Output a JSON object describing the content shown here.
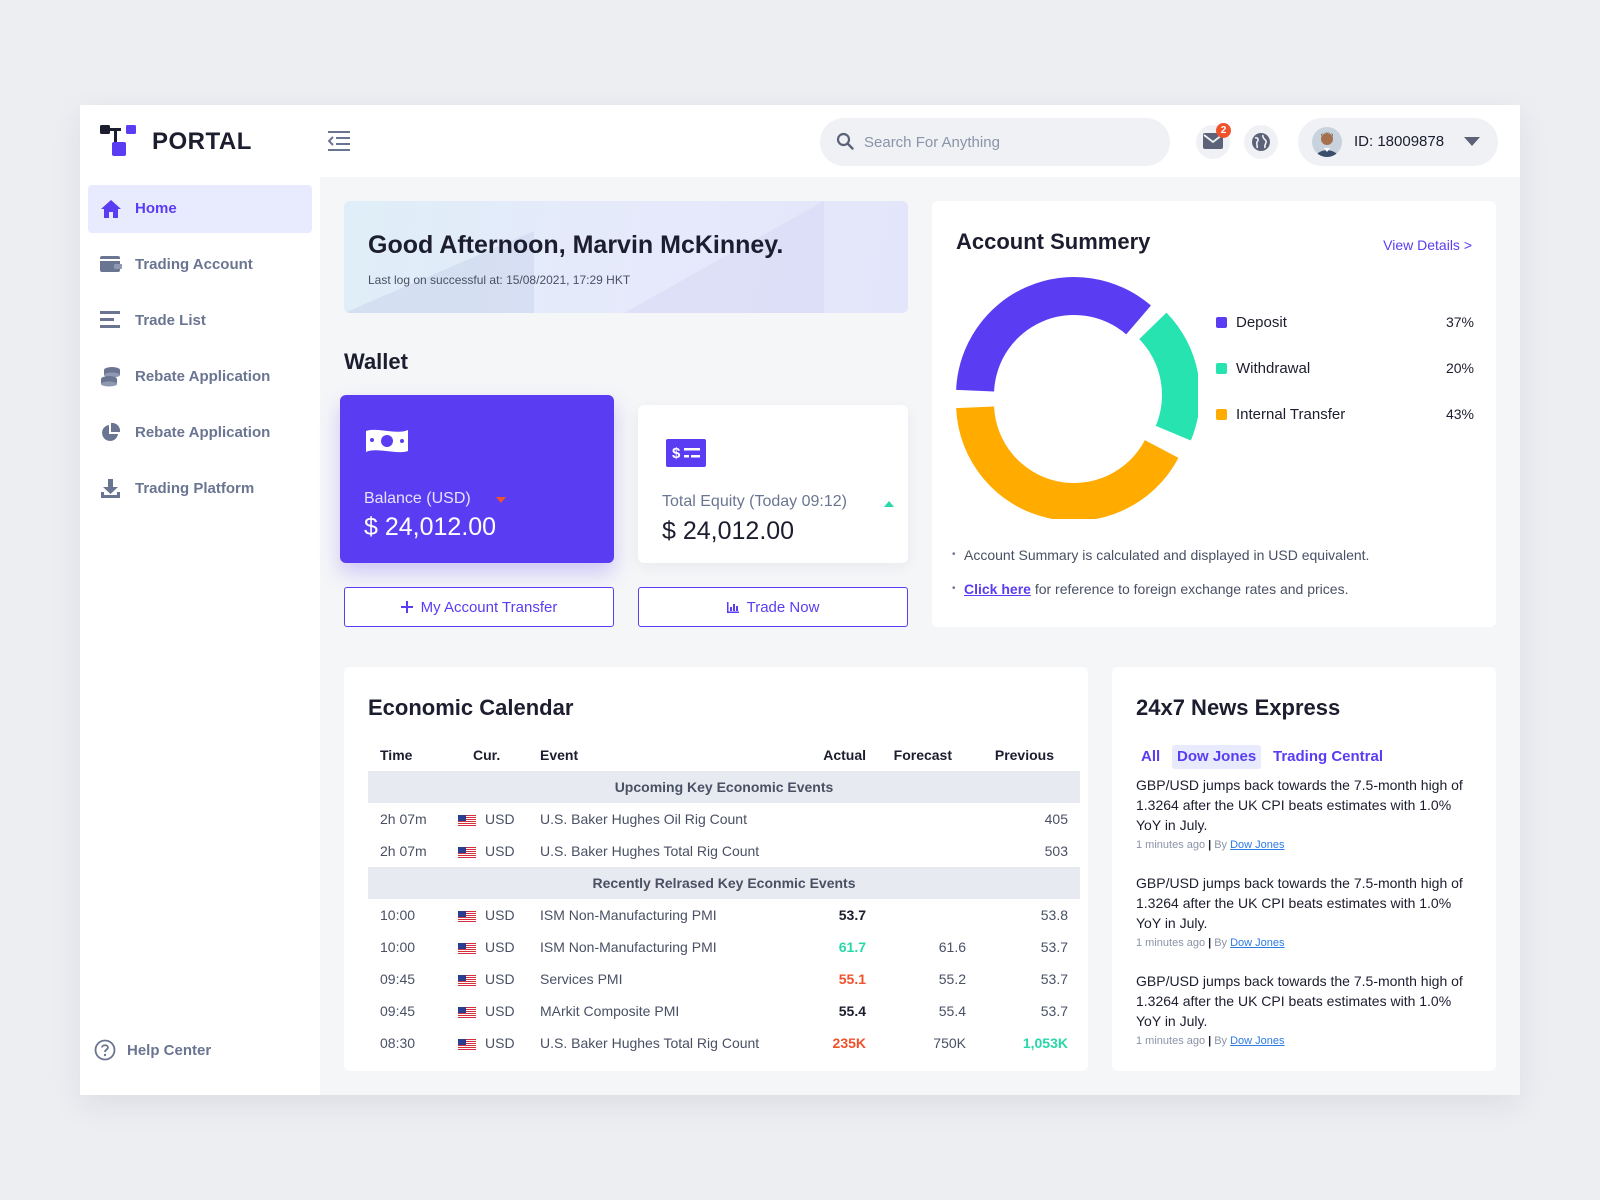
{
  "brand": {
    "name": "PORTAL",
    "accent": "#5a3df2"
  },
  "header": {
    "search_placeholder": "Search For Anything",
    "mail_badge": "2",
    "user_id": "ID: 18009878"
  },
  "sidebar": {
    "items": [
      {
        "label": "Home",
        "icon": "home-icon",
        "active": true
      },
      {
        "label": "Trading Account",
        "icon": "wallet-icon"
      },
      {
        "label": "Trade List",
        "icon": "list-icon"
      },
      {
        "label": "Rebate Application",
        "icon": "coins-icon"
      },
      {
        "label": "Rebate Application",
        "icon": "pie-chart-icon"
      },
      {
        "label": "Trading Platform",
        "icon": "download-icon"
      }
    ],
    "help": "Help Center"
  },
  "greeting": {
    "title": "Good Afternoon, Marvin McKinney.",
    "last_login": "Last log on successful at: 15/08/2021, 17:29 HKT"
  },
  "wallet": {
    "title": "Wallet",
    "balance_label": "Balance (USD)",
    "balance_value": "$ 24,012.00",
    "equity_label": "Total Equity (Today 09:12)",
    "equity_value": "$ 24,012.00",
    "transfer_button": "My Account Transfer",
    "trade_button": "Trade Now"
  },
  "summary": {
    "title": "Account Summery",
    "view_details": "View Details >",
    "legend": [
      {
        "name": "Deposit",
        "pct": "37%",
        "value": 37,
        "color": "#5a3df2"
      },
      {
        "name": "Withdrawal",
        "pct": "20%",
        "value": 20,
        "color": "#27e3b0"
      },
      {
        "name": "Internal Transfer",
        "pct": "43%",
        "value": 43,
        "color": "#ffab00"
      }
    ],
    "note1": "Account Summary is calculated and displayed in USD equivalent.",
    "note2_link": "Click here",
    "note2_text": " for reference to foreign exchange rates and prices."
  },
  "calendar": {
    "title": "Economic Calendar",
    "headers": {
      "time": "Time",
      "cur": "Cur.",
      "event": "Event",
      "actual": "Actual",
      "forecast": "Forecast",
      "previous": "Previous"
    },
    "group1": "Upcoming Key Economic  Events",
    "upcoming": [
      {
        "time": "2h 07m",
        "cur": "USD",
        "event": "U.S. Baker Hughes Oil Rig Count",
        "actual": "",
        "forecast": "",
        "previous": "405"
      },
      {
        "time": "2h 07m",
        "cur": "USD",
        "event": "U.S. Baker Hughes Total Rig Count",
        "actual": "",
        "forecast": "",
        "previous": "503"
      }
    ],
    "group2": "Recently Relrased Key Econmic Events",
    "released": [
      {
        "time": "10:00",
        "cur": "USD",
        "event": "ISM Non-Manufacturing PMI",
        "actual": "53.7",
        "forecast": "",
        "previous": "53.8"
      },
      {
        "time": "10:00",
        "cur": "USD",
        "event": "ISM Non-Manufacturing PMI",
        "actual": "61.7",
        "forecast": "61.6",
        "previous": "53.7"
      },
      {
        "time": "09:45",
        "cur": "USD",
        "event": "Services PMI",
        "actual": "55.1",
        "forecast": "55.2",
        "previous": "53.7"
      },
      {
        "time": "09:45",
        "cur": "USD",
        "event": "MArkit Composite PMI",
        "actual": "55.4",
        "forecast": "55.4",
        "previous": "53.7"
      },
      {
        "time": "08:30",
        "cur": "USD",
        "event": "U.S. Baker Hughes Total Rig Count",
        "actual": "235K",
        "forecast": "750K",
        "previous": "1,053K"
      }
    ]
  },
  "news": {
    "title": "24x7 News Express",
    "tabs": [
      "All",
      "Dow Jones",
      "Trading Central"
    ],
    "items": [
      {
        "headline": "GBP/USD jumps back towards the 7.5-month high of 1.3264 after the UK CPI beats estimates with 1.0% YoY in July.",
        "time": "1 minutes ago",
        "by": "By",
        "source": "Dow Jones"
      },
      {
        "headline": "GBP/USD jumps back towards the 7.5-month high of 1.3264 after the UK CPI beats estimates with 1.0% YoY in July.",
        "time": "1 minutes ago",
        "by": "By",
        "source": "Dow Jones"
      },
      {
        "headline": "GBP/USD jumps back towards the 7.5-month high of 1.3264 after the UK CPI beats estimates with 1.0% YoY in July.",
        "time": "1 minutes ago",
        "by": "By",
        "source": "Dow Jones"
      }
    ]
  }
}
